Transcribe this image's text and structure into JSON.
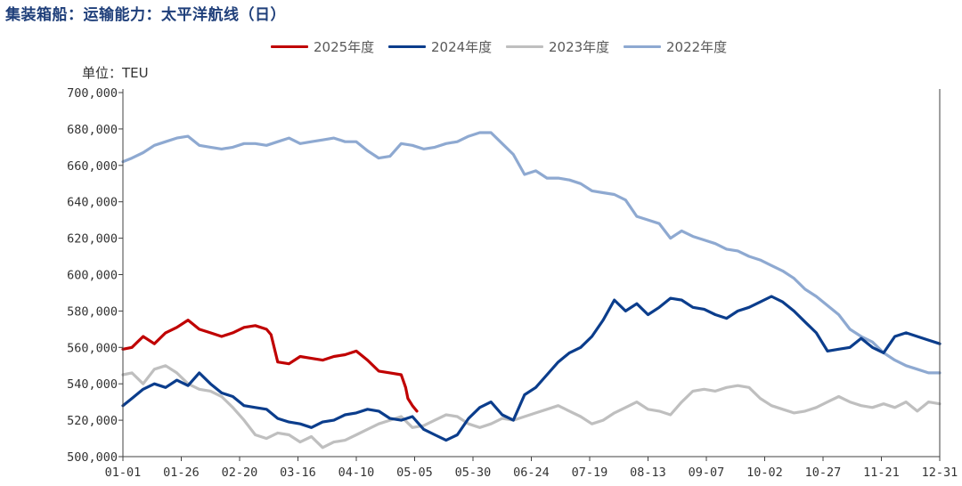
{
  "title": "集装箱船：运输能力：太平洋航线（日）",
  "unit_label": "单位：TEU",
  "colors": {
    "s2025": "#c00000",
    "s2024": "#0b3d8c",
    "s2023": "#bfbfbf",
    "s2022": "#8ea9d1",
    "axis": "#404040",
    "text": "#333333"
  },
  "chart_data": {
    "type": "line",
    "title": "集装箱船：运输能力：太平洋航线（日）",
    "xlabel": "",
    "ylabel": "单位：TEU",
    "ylim": [
      500000,
      700000
    ],
    "grid": false,
    "legend_position": "top-center",
    "x_ticks": [
      "01-01",
      "01-26",
      "02-20",
      "03-16",
      "04-10",
      "05-05",
      "05-30",
      "06-24",
      "07-19",
      "08-13",
      "09-07",
      "10-02",
      "10-27",
      "11-21",
      "12-31"
    ],
    "y_ticks": [
      "500,000",
      "520,000",
      "540,000",
      "560,000",
      "580,000",
      "600,000",
      "620,000",
      "640,000",
      "660,000",
      "680,000",
      "700,000"
    ],
    "series": [
      {
        "name": "2025年度",
        "color_key": "s2025",
        "x": [
          1,
          5,
          10,
          15,
          20,
          25,
          30,
          35,
          40,
          45,
          50,
          55,
          60,
          65,
          67,
          70,
          75,
          80,
          85,
          90,
          95,
          100,
          105,
          110,
          115,
          120,
          125,
          127,
          128,
          130,
          132
        ],
        "y": [
          559000,
          560000,
          566000,
          562000,
          568000,
          571000,
          575000,
          570000,
          568000,
          566000,
          568000,
          571000,
          572000,
          570000,
          567000,
          552000,
          551000,
          555000,
          554000,
          553000,
          555000,
          556000,
          558000,
          553000,
          547000,
          546000,
          545000,
          538000,
          532000,
          528000,
          525000
        ]
      },
      {
        "name": "2024年度",
        "color_key": "s2024",
        "x": [
          1,
          5,
          10,
          15,
          20,
          25,
          30,
          35,
          40,
          45,
          50,
          55,
          60,
          65,
          70,
          75,
          80,
          85,
          90,
          95,
          100,
          105,
          110,
          115,
          120,
          125,
          130,
          135,
          140,
          145,
          150,
          155,
          160,
          165,
          170,
          175,
          180,
          185,
          190,
          195,
          200,
          205,
          210,
          215,
          220,
          225,
          230,
          235,
          240,
          245,
          250,
          255,
          260,
          265,
          270,
          275,
          280,
          285,
          290,
          295,
          300,
          305,
          310,
          315,
          320,
          325,
          330,
          335,
          340,
          345,
          350,
          355,
          360,
          365
        ],
        "y": [
          528000,
          532000,
          537000,
          540000,
          538000,
          542000,
          539000,
          546000,
          540000,
          535000,
          533000,
          528000,
          527000,
          526000,
          521000,
          519000,
          518000,
          516000,
          519000,
          520000,
          523000,
          524000,
          526000,
          525000,
          521000,
          520000,
          522000,
          515000,
          512000,
          509000,
          512000,
          521000,
          527000,
          530000,
          523000,
          520000,
          534000,
          538000,
          545000,
          552000,
          557000,
          560000,
          566000,
          575000,
          586000,
          580000,
          584000,
          578000,
          582000,
          587000,
          586000,
          582000,
          581000,
          578000,
          576000,
          580000,
          582000,
          585000,
          588000,
          585000,
          580000,
          574000,
          568000,
          558000,
          559000,
          560000,
          565000,
          560000,
          557000,
          566000,
          568000,
          566000,
          564000,
          562000
        ]
      },
      {
        "name": "2023年度",
        "color_key": "s2023",
        "x": [
          1,
          5,
          10,
          15,
          20,
          25,
          30,
          35,
          40,
          45,
          50,
          55,
          60,
          65,
          70,
          75,
          80,
          85,
          90,
          95,
          100,
          105,
          110,
          115,
          120,
          125,
          130,
          135,
          140,
          145,
          150,
          155,
          160,
          165,
          170,
          175,
          180,
          185,
          190,
          195,
          200,
          205,
          210,
          215,
          220,
          225,
          230,
          235,
          240,
          245,
          250,
          255,
          260,
          265,
          270,
          275,
          280,
          285,
          290,
          295,
          300,
          305,
          310,
          315,
          320,
          325,
          330,
          335,
          340,
          345,
          350,
          355,
          360,
          365
        ],
        "y": [
          545000,
          546000,
          540000,
          548000,
          550000,
          546000,
          540000,
          537000,
          536000,
          533000,
          527000,
          520000,
          512000,
          510000,
          513000,
          512000,
          508000,
          511000,
          505000,
          508000,
          509000,
          512000,
          515000,
          518000,
          520000,
          522000,
          516000,
          517000,
          520000,
          523000,
          522000,
          518000,
          516000,
          518000,
          521000,
          520000,
          522000,
          524000,
          526000,
          528000,
          525000,
          522000,
          518000,
          520000,
          524000,
          527000,
          530000,
          526000,
          525000,
          523000,
          530000,
          536000,
          537000,
          536000,
          538000,
          539000,
          538000,
          532000,
          528000,
          526000,
          524000,
          525000,
          527000,
          530000,
          533000,
          530000,
          528000,
          527000,
          529000,
          527000,
          530000,
          525000,
          530000,
          529000
        ]
      },
      {
        "name": "2022年度",
        "color_key": "s2022",
        "x": [
          1,
          5,
          10,
          15,
          20,
          25,
          30,
          35,
          40,
          45,
          50,
          55,
          60,
          65,
          70,
          75,
          80,
          85,
          90,
          95,
          100,
          105,
          110,
          115,
          120,
          125,
          130,
          135,
          140,
          145,
          150,
          155,
          160,
          165,
          170,
          175,
          180,
          185,
          190,
          195,
          200,
          205,
          210,
          215,
          220,
          225,
          230,
          235,
          240,
          245,
          250,
          255,
          260,
          265,
          270,
          275,
          280,
          285,
          290,
          295,
          300,
          305,
          310,
          315,
          320,
          325,
          330,
          335,
          340,
          345,
          350,
          355,
          360,
          365
        ],
        "y": [
          662000,
          664000,
          667000,
          671000,
          673000,
          675000,
          676000,
          671000,
          670000,
          669000,
          670000,
          672000,
          672000,
          671000,
          673000,
          675000,
          672000,
          673000,
          674000,
          675000,
          673000,
          673000,
          668000,
          664000,
          665000,
          672000,
          671000,
          669000,
          670000,
          672000,
          673000,
          676000,
          678000,
          678000,
          672000,
          666000,
          655000,
          657000,
          653000,
          653000,
          652000,
          650000,
          646000,
          645000,
          644000,
          641000,
          632000,
          630000,
          628000,
          620000,
          624000,
          621000,
          619000,
          617000,
          614000,
          613000,
          610000,
          608000,
          605000,
          602000,
          598000,
          592000,
          588000,
          583000,
          578000,
          570000,
          566000,
          563000,
          557000,
          553000,
          550000,
          548000,
          546000,
          546000
        ]
      }
    ]
  }
}
